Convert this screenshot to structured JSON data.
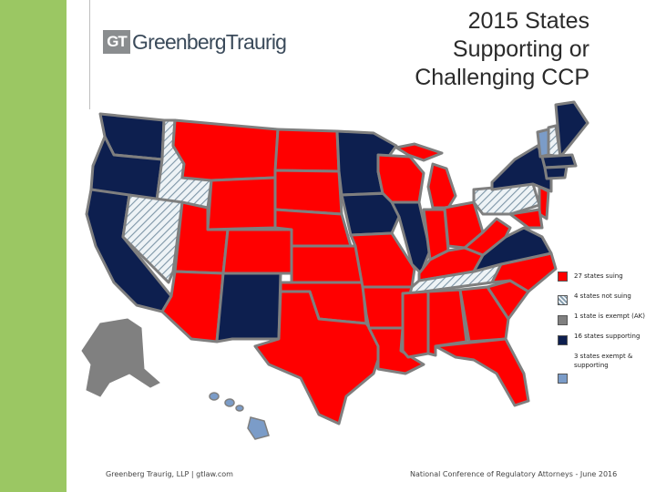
{
  "header": {
    "logo_mark": "GT",
    "logo_name": "GreenbergTraurig",
    "title_lines": [
      "2015 States",
      "Supporting or",
      "Challenging CCP"
    ]
  },
  "legend": {
    "items": [
      {
        "label": "27 states suing",
        "color": "#ff0000",
        "pattern": "solid"
      },
      {
        "label": "4 states not suing",
        "color": "#d9e3ea",
        "pattern": "hatch"
      },
      {
        "label": "1 state is exempt (AK)",
        "color": "#808080",
        "pattern": "solid"
      },
      {
        "label": "16 states supporting",
        "color": "#0d1f4f",
        "pattern": "solid"
      },
      {
        "label": "3 states exempt & supporting",
        "color": "#7b9cc8",
        "pattern": "solid"
      }
    ]
  },
  "colors": {
    "suing": "#ff0000",
    "not_suing": "#d9e3ea",
    "exempt": "#808080",
    "supporting": "#0d1f4f",
    "exempt_supporting": "#7b9cc8",
    "border": "#7f7f7f",
    "sidebar": "#9bc763"
  },
  "footer": {
    "left": "Greenberg Traurig, LLP | gtlaw.com",
    "right": "National Conference of Regulatory Attorneys - June 2016"
  }
}
